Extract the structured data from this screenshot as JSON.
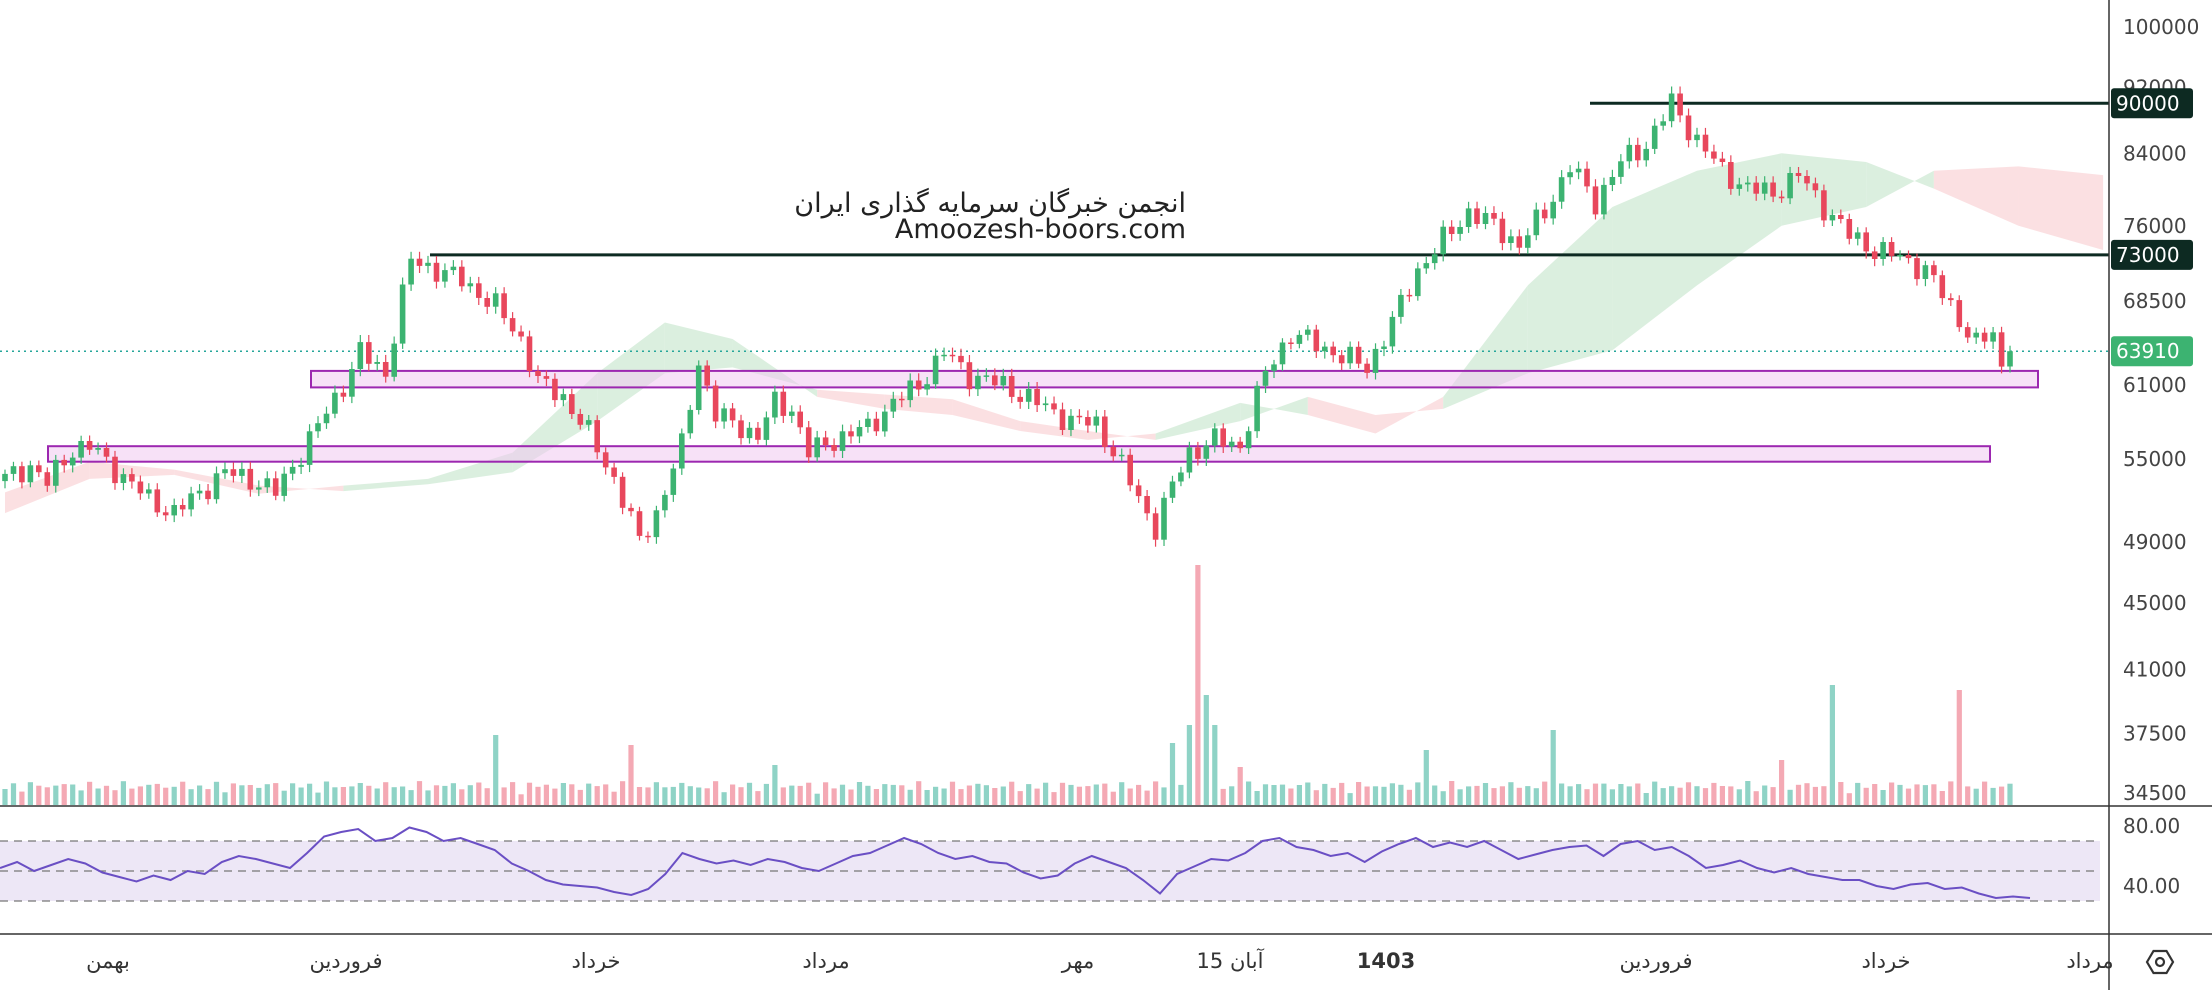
{
  "watermark": {
    "line1": "انجمن خبرگان سرمایه گذاری ایران",
    "line2": "Amoozesh-boors.com"
  },
  "colors": {
    "up": "#26a69a",
    "up_candle": "#3cb371",
    "down": "#e8475c",
    "cloud_bull": "#cfe9d4",
    "cloud_bear": "#f9d5d8",
    "vol_up": "#8fd3c6",
    "vol_down": "#f4a9b4",
    "zone_fill": "#f0c8f0",
    "zone_stroke": "#9c27b0",
    "hline": "#0d2a22",
    "rsi": "#6a4fc4",
    "rsi_band": "#ede7f6"
  },
  "chart_data": [
    {
      "type": "candlestick",
      "y_ticks": [
        "100000",
        "92000",
        "84000",
        "76000",
        "68500",
        "61000",
        "55000",
        "49000",
        "45000",
        "41000",
        "37500",
        "34500"
      ],
      "y_scale": "log",
      "horizontal_levels": [
        {
          "value": 90000,
          "label": "90000"
        },
        {
          "value": 73000,
          "label": "73000"
        }
      ],
      "last_price": {
        "value": 63910,
        "label": "63910"
      },
      "support_zones": [
        {
          "low": 60800,
          "high": 62200
        },
        {
          "low": 54800,
          "high": 56000
        }
      ],
      "x_labels": [
        "بهمن",
        "فروردین",
        "خرداد",
        "مرداد",
        "مهر",
        "15 آبان",
        "1403",
        "فروردین",
        "خرداد",
        "مرداد"
      ],
      "price_path": [
        {
          "t": 0,
          "v": 53500
        },
        {
          "t": 3,
          "v": 54500
        },
        {
          "t": 5,
          "v": 53200
        },
        {
          "t": 8,
          "v": 55800
        },
        {
          "t": 10,
          "v": 56000
        },
        {
          "t": 13,
          "v": 54200
        },
        {
          "t": 17,
          "v": 52000
        },
        {
          "t": 20,
          "v": 51000
        },
        {
          "t": 23,
          "v": 52500
        },
        {
          "t": 26,
          "v": 54000
        },
        {
          "t": 29,
          "v": 53500
        },
        {
          "t": 32,
          "v": 52500
        },
        {
          "t": 36,
          "v": 56500
        },
        {
          "t": 40,
          "v": 61000
        },
        {
          "t": 42,
          "v": 63800
        },
        {
          "t": 45,
          "v": 62000
        },
        {
          "t": 48,
          "v": 72500
        },
        {
          "t": 51,
          "v": 71500
        },
        {
          "t": 54,
          "v": 70500
        },
        {
          "t": 58,
          "v": 68000
        },
        {
          "t": 61,
          "v": 65000
        },
        {
          "t": 63,
          "v": 61200
        },
        {
          "t": 66,
          "v": 60000
        },
        {
          "t": 69,
          "v": 57000
        },
        {
          "t": 72,
          "v": 53500
        },
        {
          "t": 75,
          "v": 49000
        },
        {
          "t": 77,
          "v": 51000
        },
        {
          "t": 80,
          "v": 56000
        },
        {
          "t": 82,
          "v": 63000
        },
        {
          "t": 84,
          "v": 58500
        },
        {
          "t": 87,
          "v": 57500
        },
        {
          "t": 89,
          "v": 56800
        },
        {
          "t": 91,
          "v": 59500
        },
        {
          "t": 93,
          "v": 59000
        },
        {
          "t": 95,
          "v": 55500
        },
        {
          "t": 98,
          "v": 56500
        },
        {
          "t": 102,
          "v": 57500
        },
        {
          "t": 105,
          "v": 59500
        },
        {
          "t": 108,
          "v": 61000
        },
        {
          "t": 111,
          "v": 63800
        },
        {
          "t": 114,
          "v": 61800
        },
        {
          "t": 118,
          "v": 61000
        },
        {
          "t": 122,
          "v": 59500
        },
        {
          "t": 126,
          "v": 58000
        },
        {
          "t": 129,
          "v": 57800
        },
        {
          "t": 132,
          "v": 54500
        },
        {
          "t": 134,
          "v": 52000
        },
        {
          "t": 136,
          "v": 50000
        },
        {
          "t": 138,
          "v": 53000
        },
        {
          "t": 140,
          "v": 55500
        },
        {
          "t": 143,
          "v": 56500
        },
        {
          "t": 146,
          "v": 56000
        },
        {
          "t": 149,
          "v": 62000
        },
        {
          "t": 152,
          "v": 65500
        },
        {
          "t": 155,
          "v": 64500
        },
        {
          "t": 158,
          "v": 63500
        },
        {
          "t": 161,
          "v": 62500
        },
        {
          "t": 164,
          "v": 66500
        },
        {
          "t": 167,
          "v": 71500
        },
        {
          "t": 170,
          "v": 74500
        },
        {
          "t": 173,
          "v": 77500
        },
        {
          "t": 176,
          "v": 76000
        },
        {
          "t": 179,
          "v": 74000
        },
        {
          "t": 182,
          "v": 77500
        },
        {
          "t": 185,
          "v": 82500
        },
        {
          "t": 188,
          "v": 78500
        },
        {
          "t": 191,
          "v": 83000
        },
        {
          "t": 194,
          "v": 85000
        },
        {
          "t": 197,
          "v": 90000
        },
        {
          "t": 200,
          "v": 85500
        },
        {
          "t": 203,
          "v": 82000
        },
        {
          "t": 206,
          "v": 80000
        },
        {
          "t": 209,
          "v": 79500
        },
        {
          "t": 212,
          "v": 81500
        },
        {
          "t": 215,
          "v": 78000
        },
        {
          "t": 218,
          "v": 75000
        },
        {
          "t": 221,
          "v": 73500
        },
        {
          "t": 224,
          "v": 72800
        },
        {
          "t": 227,
          "v": 71500
        },
        {
          "t": 230,
          "v": 68000
        },
        {
          "t": 233,
          "v": 64500
        },
        {
          "t": 235,
          "v": 65500
        },
        {
          "t": 236,
          "v": 62500
        },
        {
          "t": 237,
          "v": 63910
        }
      ],
      "cloud": [
        {
          "t": 0,
          "a": 51000,
          "b": 52500
        },
        {
          "t": 10,
          "a": 53500,
          "b": 54800
        },
        {
          "t": 20,
          "a": 53800,
          "b": 54200
        },
        {
          "t": 30,
          "a": 52400,
          "b": 53000
        },
        {
          "t": 40,
          "a": 53000,
          "b": 52600
        },
        {
          "t": 50,
          "a": 53500,
          "b": 53100
        },
        {
          "t": 60,
          "a": 55500,
          "b": 54000
        },
        {
          "t": 70,
          "a": 62000,
          "b": 58000
        },
        {
          "t": 78,
          "a": 66500,
          "b": 62000
        },
        {
          "t": 86,
          "a": 65000,
          "b": 62500
        },
        {
          "t": 96,
          "a": 60000,
          "b": 60600
        },
        {
          "t": 104,
          "a": 59000,
          "b": 60200
        },
        {
          "t": 112,
          "a": 58500,
          "b": 59800
        },
        {
          "t": 120,
          "a": 57200,
          "b": 58000
        },
        {
          "t": 128,
          "a": 56500,
          "b": 57200
        },
        {
          "t": 136,
          "a": 57000,
          "b": 56500
        },
        {
          "t": 146,
          "a": 59500,
          "b": 58000
        },
        {
          "t": 154,
          "a": 58500,
          "b": 60000
        },
        {
          "t": 162,
          "a": 57000,
          "b": 58500
        },
        {
          "t": 170,
          "a": 60000,
          "b": 59000
        },
        {
          "t": 180,
          "a": 70000,
          "b": 62000
        },
        {
          "t": 190,
          "a": 78000,
          "b": 64000
        },
        {
          "t": 200,
          "a": 82000,
          "b": 70000
        },
        {
          "t": 210,
          "a": 84000,
          "b": 76000
        },
        {
          "t": 220,
          "a": 83000,
          "b": 78000
        },
        {
          "t": 228,
          "a": 80000,
          "b": 82000
        },
        {
          "t": 238,
          "a": 76000,
          "b": 82500
        },
        {
          "t": 248,
          "a": 73500,
          "b": 81500
        }
      ],
      "rsi": {
        "levels": [
          "80.00",
          "40.00"
        ],
        "values": [
          52,
          56,
          50,
          54,
          58,
          55,
          49,
          46,
          43,
          47,
          44,
          50,
          48,
          56,
          60,
          58,
          55,
          52,
          62,
          73,
          76,
          78,
          70,
          72,
          79,
          76,
          70,
          72,
          68,
          64,
          55,
          50,
          44,
          41,
          40,
          39,
          36,
          34,
          38,
          48,
          62,
          58,
          55,
          57,
          54,
          58,
          56,
          52,
          50,
          55,
          60,
          62,
          67,
          72,
          68,
          62,
          58,
          60,
          56,
          55,
          49,
          45,
          47,
          55,
          60,
          56,
          52,
          44,
          35,
          48,
          53,
          58,
          57,
          62,
          70,
          72,
          66,
          64,
          60,
          62,
          56,
          63,
          68,
          72,
          66,
          69,
          66,
          70,
          64,
          58,
          61,
          64,
          66,
          67,
          60,
          68,
          70,
          64,
          66,
          60,
          52,
          54,
          57,
          52,
          49,
          52,
          48,
          46,
          44,
          44,
          40,
          38,
          41,
          42,
          38,
          39,
          35,
          32,
          33,
          32
        ]
      }
    }
  ]
}
